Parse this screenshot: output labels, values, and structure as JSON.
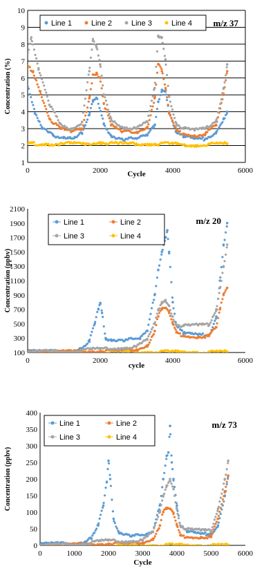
{
  "colors": {
    "line1": "#5B9BD5",
    "line2": "#ED7D31",
    "line3": "#A5A5A5",
    "line4": "#FFC000"
  },
  "chart_data": [
    {
      "type": "scatter",
      "annotation": "m/z 37",
      "xlabel": "Cycle",
      "ylabel": "Concentration (%)",
      "xlim": [
        0,
        6000
      ],
      "ylim": [
        1,
        10
      ],
      "xticks": [
        "0",
        "2000",
        "4000",
        "6000"
      ],
      "yticks": [
        "1",
        "2",
        "3",
        "4",
        "5",
        "6",
        "7",
        "8",
        "9",
        "10"
      ],
      "grid": true,
      "legend_position": "top",
      "series": [
        {
          "name": "Line 1",
          "x": [
            0,
            200,
            400,
            700,
            1000,
            1300,
            1500,
            1700,
            1800,
            1900,
            2100,
            2300,
            2600,
            3000,
            3300,
            3500,
            3600,
            3700,
            3800,
            3900,
            4100,
            4300,
            4600,
            4900,
            5200,
            5400,
            5500
          ],
          "y": [
            5.5,
            3.9,
            3.0,
            2.6,
            2.5,
            2.5,
            2.7,
            3.8,
            4.6,
            4.8,
            3.3,
            2.6,
            2.4,
            2.4,
            2.6,
            3.2,
            4.6,
            5.3,
            5.2,
            4.0,
            2.8,
            2.5,
            2.4,
            2.4,
            2.8,
            3.6,
            4.0
          ]
        },
        {
          "name": "Line 2",
          "x": [
            0,
            150,
            350,
            600,
            900,
            1200,
            1500,
            1700,
            1800,
            1900,
            2000,
            2100,
            2300,
            2600,
            3000,
            3300,
            3500,
            3600,
            3700,
            3800,
            3900,
            4100,
            4300,
            4600,
            4900,
            5200,
            5400,
            5500
          ],
          "y": [
            6.7,
            6.4,
            5.2,
            3.6,
            3.0,
            2.8,
            3.0,
            4.8,
            6.2,
            6.3,
            6.0,
            4.5,
            3.2,
            2.8,
            2.8,
            3.1,
            4.8,
            6.8,
            6.4,
            5.4,
            3.9,
            2.9,
            2.7,
            2.6,
            2.7,
            3.2,
            5.0,
            6.4
          ]
        },
        {
          "name": "Line 3",
          "x": [
            0,
            100,
            300,
            600,
            900,
            1200,
            1500,
            1700,
            1800,
            1900,
            2000,
            2100,
            2300,
            2600,
            3000,
            3300,
            3500,
            3600,
            3700,
            3800,
            3900,
            4100,
            4300,
            4600,
            4900,
            5200,
            5400,
            5500
          ],
          "y": [
            7.5,
            8.4,
            6.5,
            4.4,
            3.3,
            3.0,
            3.4,
            6.4,
            8.2,
            7.8,
            6.8,
            5.0,
            3.6,
            3.1,
            3.0,
            3.4,
            5.4,
            8.5,
            8.4,
            7.1,
            4.9,
            3.3,
            3.0,
            2.9,
            3.0,
            3.5,
            5.4,
            6.8
          ]
        },
        {
          "name": "Line 4",
          "x": [
            0,
            500,
            1000,
            1500,
            2000,
            2500,
            3000,
            3500,
            4000,
            4500,
            5000,
            5500
          ],
          "y": [
            2.1,
            2.1,
            2.1,
            2.1,
            2.2,
            2.1,
            2.1,
            2.1,
            2.1,
            2.0,
            2.1,
            2.1
          ]
        }
      ]
    },
    {
      "type": "scatter",
      "annotation": "m/z 20",
      "xlabel": "cycle",
      "ylabel": "Concentration (ppbv)",
      "xlim": [
        0,
        6000
      ],
      "ylim": [
        100,
        2100
      ],
      "xticks": [
        "0",
        "2000",
        "4000",
        "6000"
      ],
      "yticks": [
        "100",
        "300",
        "500",
        "700",
        "900",
        "1100",
        "1300",
        "1500",
        "1700",
        "1900",
        "2100"
      ],
      "grid": false,
      "legend_position": "top-left",
      "series": [
        {
          "name": "Line 1",
          "x": [
            0,
            500,
            1000,
            1500,
            1700,
            1850,
            1950,
            2000,
            2050,
            2150,
            2300,
            2700,
            3100,
            3300,
            3500,
            3600,
            3700,
            3800,
            3850,
            3900,
            4000,
            4100,
            4300,
            4700,
            5000,
            5200,
            5300,
            5400,
            5500
          ],
          "y": [
            110,
            115,
            120,
            140,
            250,
            500,
            700,
            790,
            650,
            300,
            280,
            280,
            290,
            400,
            900,
            1250,
            1500,
            1700,
            1800,
            1500,
            800,
            480,
            360,
            350,
            340,
            600,
            1100,
            1600,
            1900
          ]
        },
        {
          "name": "Line 2",
          "x": [
            0,
            1000,
            2000,
            2500,
            3000,
            3300,
            3500,
            3600,
            3700,
            3800,
            3900,
            4000,
            4100,
            4300,
            4700,
            5000,
            5200,
            5300,
            5400,
            5500
          ],
          "y": [
            110,
            110,
            120,
            125,
            140,
            200,
            400,
            600,
            700,
            720,
            650,
            500,
            380,
            330,
            320,
            330,
            450,
            700,
            900,
            1000
          ]
        },
        {
          "name": "Line 3",
          "x": [
            0,
            1000,
            2000,
            2500,
            3000,
            3300,
            3500,
            3600,
            3700,
            3800,
            3900,
            4000,
            4100,
            4300,
            4700,
            5000,
            5200,
            5300,
            5400,
            5500
          ],
          "y": [
            110,
            115,
            150,
            160,
            180,
            280,
            500,
            700,
            800,
            830,
            750,
            600,
            490,
            470,
            480,
            490,
            700,
            1000,
            1300,
            1600
          ]
        },
        {
          "name": "Line 4",
          "x": [
            0,
            1000,
            2000,
            3000,
            4000,
            5000,
            5500
          ],
          "y": [
            110,
            110,
            110,
            110,
            110,
            110,
            110
          ]
        }
      ]
    },
    {
      "type": "scatter",
      "annotation": "m/z 73",
      "xlabel": "Cycle",
      "ylabel": "Concentration (ppbv)",
      "xlim": [
        0,
        6000
      ],
      "ylim": [
        0,
        400
      ],
      "xticks": [
        "0",
        "1000",
        "2000",
        "3000",
        "4000",
        "5000",
        "6000"
      ],
      "yticks": [
        "0",
        "50",
        "100",
        "150",
        "200",
        "250",
        "300",
        "350",
        "400"
      ],
      "grid": false,
      "legend_position": "top-left",
      "series": [
        {
          "name": "Line 1",
          "x": [
            0,
            300,
            800,
            1200,
            1500,
            1700,
            1850,
            1950,
            2000,
            2050,
            2150,
            2300,
            2700,
            3100,
            3300,
            3500,
            3600,
            3700,
            3750,
            3800,
            3850,
            3900,
            4000,
            4100,
            4300,
            4700,
            5000,
            5200,
            5400,
            5500
          ],
          "y": [
            2,
            5,
            6,
            8,
            20,
            60,
            120,
            190,
            255,
            200,
            80,
            40,
            30,
            30,
            40,
            120,
            200,
            270,
            280,
            360,
            250,
            200,
            120,
            60,
            40,
            35,
            35,
            60,
            150,
            210
          ]
        },
        {
          "name": "Line 2",
          "x": [
            0,
            1000,
            2000,
            2500,
            3000,
            3300,
            3500,
            3600,
            3700,
            3800,
            3900,
            4000,
            4100,
            4300,
            4700,
            5000,
            5200,
            5400,
            5500
          ],
          "y": [
            0,
            2,
            5,
            5,
            8,
            20,
            60,
            100,
            110,
            110,
            95,
            60,
            30,
            25,
            25,
            25,
            80,
            160,
            210
          ]
        },
        {
          "name": "Line 3",
          "x": [
            0,
            1000,
            2000,
            2500,
            3000,
            3300,
            3500,
            3600,
            3700,
            3800,
            3900,
            4000,
            4100,
            4300,
            4700,
            5000,
            5200,
            5400,
            5500
          ],
          "y": [
            0,
            3,
            15,
            12,
            15,
            40,
            100,
            150,
            180,
            200,
            170,
            110,
            60,
            48,
            45,
            45,
            110,
            200,
            255
          ]
        },
        {
          "name": "Line 4",
          "x": [
            0,
            1000,
            2000,
            3000,
            4000,
            5000,
            5500
          ],
          "y": [
            1,
            1,
            1,
            1,
            1,
            1,
            1
          ]
        }
      ]
    }
  ]
}
